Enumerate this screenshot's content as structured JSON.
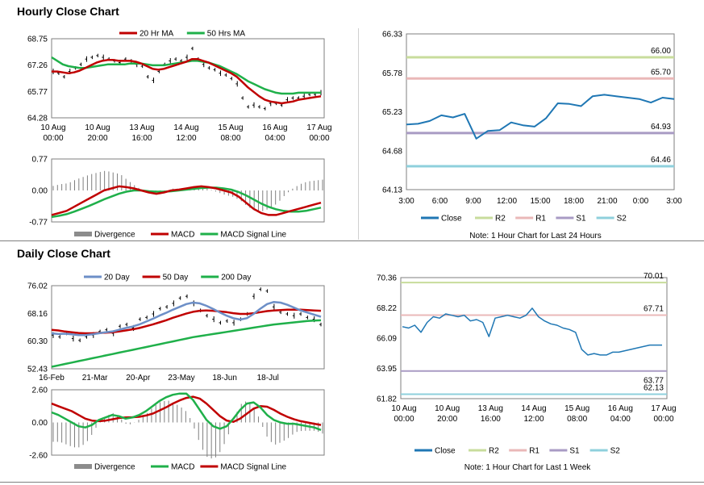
{
  "sections": {
    "hourly_title": "Hourly Close Chart",
    "daily_title": "Daily Close Chart"
  },
  "colors": {
    "red": "#c00000",
    "green": "#1fb04a",
    "blue": "#1f77b4",
    "steel": "#6d8fc7",
    "r2": "#c8dc9c",
    "r1": "#eab8b8",
    "s1": "#a99bc4",
    "s2": "#8fd0dc",
    "grey": "#8c8c8c"
  },
  "chart_data": [
    {
      "id": "hourly_price",
      "type": "line",
      "series": [
        {
          "name": "20 Hr MA",
          "color": "red"
        },
        {
          "name": "50 Hrs MA",
          "color": "green"
        }
      ],
      "x_ticks": [
        {
          "l1": "10 Aug",
          "l2": "00:00"
        },
        {
          "l1": "10 Aug",
          "l2": "20:00"
        },
        {
          "l1": "13 Aug",
          "l2": "16:00"
        },
        {
          "l1": "14 Aug",
          "l2": "12:00"
        },
        {
          "l1": "15 Aug",
          "l2": "08:00"
        },
        {
          "l1": "16 Aug",
          "l2": "04:00"
        },
        {
          "l1": "17 Aug",
          "l2": "00:00"
        }
      ],
      "y_ticks": [
        "68.75",
        "67.26",
        "65.77",
        "64.28"
      ],
      "ylim": [
        64.28,
        68.75
      ],
      "price_path": [
        66.9,
        66.8,
        66.6,
        66.9,
        67.1,
        67.3,
        67.6,
        67.7,
        67.8,
        67.7,
        67.6,
        67.5,
        67.4,
        67.6,
        67.5,
        67.3,
        67.2,
        66.6,
        66.4,
        66.9,
        67.3,
        67.5,
        67.6,
        67.5,
        67.7,
        68.2,
        67.6,
        67.3,
        67.1,
        67.0,
        66.8,
        66.7,
        66.5,
        66.2,
        65.4,
        64.9,
        65.0,
        64.9,
        64.8,
        65.1,
        65.1,
        65.0,
        65.3,
        65.4,
        65.4,
        65.5,
        65.6,
        65.6,
        65.7
      ],
      "ma20": [
        66.9,
        66.9,
        66.85,
        66.8,
        66.85,
        66.95,
        67.1,
        67.25,
        67.4,
        67.5,
        67.55,
        67.55,
        67.5,
        67.5,
        67.5,
        67.45,
        67.35,
        67.2,
        67.05,
        67.0,
        67.05,
        67.15,
        67.25,
        67.35,
        67.45,
        67.6,
        67.6,
        67.5,
        67.4,
        67.25,
        67.1,
        66.95,
        66.8,
        66.6,
        66.3,
        66.0,
        65.75,
        65.5,
        65.3,
        65.2,
        65.15,
        65.1,
        65.15,
        65.2,
        65.3,
        65.35,
        65.4,
        65.45,
        65.5
      ],
      "ma50": [
        67.7,
        67.5,
        67.3,
        67.2,
        67.15,
        67.1,
        67.1,
        67.15,
        67.2,
        67.25,
        67.3,
        67.3,
        67.3,
        67.3,
        67.35,
        67.35,
        67.35,
        67.3,
        67.25,
        67.25,
        67.25,
        67.3,
        67.35,
        67.4,
        67.45,
        67.5,
        67.5,
        67.45,
        67.4,
        67.3,
        67.2,
        67.05,
        66.9,
        66.75,
        66.55,
        66.35,
        66.2,
        66.05,
        65.9,
        65.8,
        65.7,
        65.65,
        65.65,
        65.65,
        65.7,
        65.7,
        65.7,
        65.7,
        65.7
      ]
    },
    {
      "id": "hourly_macd",
      "type": "line",
      "series": [
        {
          "name": "Divergence",
          "color": "grey"
        },
        {
          "name": "MACD",
          "color": "red"
        },
        {
          "name": "MACD Signal Line",
          "color": "green"
        }
      ],
      "y_ticks": [
        "0.77",
        "0.00",
        "-0.77"
      ],
      "ylim": [
        -0.77,
        0.77
      ],
      "macd": [
        -0.6,
        -0.55,
        -0.5,
        -0.4,
        -0.3,
        -0.2,
        -0.1,
        0.0,
        0.05,
        0.1,
        0.08,
        0.05,
        0.0,
        -0.05,
        -0.08,
        -0.05,
        0.0,
        0.02,
        0.05,
        0.08,
        0.1,
        0.08,
        0.05,
        0.0,
        -0.05,
        -0.15,
        -0.3,
        -0.45,
        -0.55,
        -0.6,
        -0.6,
        -0.55,
        -0.5,
        -0.45,
        -0.4,
        -0.35,
        -0.3
      ],
      "signal": [
        -0.65,
        -0.62,
        -0.58,
        -0.52,
        -0.45,
        -0.38,
        -0.3,
        -0.22,
        -0.15,
        -0.08,
        -0.03,
        0.0,
        0.0,
        -0.02,
        -0.03,
        -0.03,
        -0.02,
        0.0,
        0.02,
        0.04,
        0.06,
        0.07,
        0.07,
        0.05,
        0.02,
        -0.04,
        -0.12,
        -0.22,
        -0.32,
        -0.4,
        -0.46,
        -0.5,
        -0.52,
        -0.52,
        -0.5,
        -0.46,
        -0.42
      ]
    },
    {
      "id": "hourly_levels",
      "type": "line",
      "note": "Note: 1 Hour Chart for Last 24 Hours",
      "y_ticks": [
        "66.33",
        "65.78",
        "65.23",
        "64.68",
        "64.13"
      ],
      "ylim": [
        64.13,
        66.33
      ],
      "x_ticks": [
        "3:00",
        "6:00",
        "9:00",
        "12:00",
        "15:00",
        "18:00",
        "21:00",
        "0:00",
        "3:00"
      ],
      "levels": [
        {
          "name": "R2",
          "value": 66.0,
          "label": "66.00",
          "color": "r2"
        },
        {
          "name": "R1",
          "value": 65.7,
          "label": "65.70",
          "color": "r1"
        },
        {
          "name": "S1",
          "value": 64.93,
          "label": "64.93",
          "color": "s1"
        },
        {
          "name": "S2",
          "value": 64.46,
          "label": "64.46",
          "color": "s2"
        }
      ],
      "close": [
        65.05,
        65.06,
        65.1,
        65.18,
        65.15,
        65.2,
        64.85,
        64.96,
        64.97,
        65.08,
        65.04,
        65.02,
        65.14,
        65.35,
        65.34,
        65.31,
        65.45,
        65.47,
        65.45,
        65.43,
        65.41,
        65.36,
        65.43,
        65.41
      ]
    },
    {
      "id": "daily_price",
      "type": "line",
      "series": [
        {
          "name": "20 Day",
          "color": "steel"
        },
        {
          "name": "50 Day",
          "color": "red"
        },
        {
          "name": "200 Day",
          "color": "green"
        }
      ],
      "x_ticks": [
        "16-Feb",
        "21-Mar",
        "20-Apr",
        "23-May",
        "18-Jun",
        "18-Jul"
      ],
      "y_ticks": [
        "76.02",
        "68.16",
        "60.30",
        "52.43"
      ],
      "ylim": [
        52.43,
        76.02
      ],
      "price_path": [
        62.0,
        61.5,
        62.5,
        61.0,
        60.5,
        61.5,
        62.0,
        63.0,
        63.5,
        62.5,
        64.5,
        65.0,
        64.0,
        66.5,
        67.0,
        68.0,
        69.5,
        70.0,
        71.0,
        72.5,
        73.0,
        71.0,
        69.0,
        67.5,
        66.5,
        65.5,
        66.0,
        65.5,
        66.5,
        68.0,
        73.0,
        75.0,
        74.5,
        70.0,
        68.5,
        68.0,
        67.5,
        68.0,
        67.0,
        66.5,
        65.0
      ],
      "ma20": [
        62.5,
        62.3,
        62.4,
        62.2,
        62.0,
        62.0,
        62.2,
        62.5,
        62.8,
        63.0,
        63.5,
        64.0,
        64.4,
        65.0,
        65.8,
        66.6,
        67.5,
        68.3,
        69.2,
        70.0,
        70.8,
        71.2,
        71.0,
        70.3,
        69.4,
        68.4,
        67.5,
        66.8,
        66.4,
        66.8,
        68.0,
        69.5,
        70.8,
        71.4,
        71.2,
        70.6,
        69.8,
        69.0,
        68.4,
        67.8,
        67.2
      ],
      "ma50": [
        63.5,
        63.3,
        63.0,
        62.8,
        62.6,
        62.5,
        62.5,
        62.6,
        62.7,
        62.8,
        63.0,
        63.3,
        63.6,
        64.0,
        64.5,
        65.0,
        65.6,
        66.2,
        66.9,
        67.5,
        68.1,
        68.6,
        68.9,
        69.0,
        68.9,
        68.7,
        68.5,
        68.2,
        68.0,
        68.0,
        68.2,
        68.5,
        68.8,
        69.0,
        69.1,
        69.2,
        69.2,
        69.2,
        69.1,
        69.0,
        68.9
      ],
      "ma200": [
        53.0,
        53.4,
        53.8,
        54.2,
        54.6,
        55.0,
        55.4,
        55.8,
        56.2,
        56.6,
        57.0,
        57.4,
        57.8,
        58.2,
        58.6,
        59.0,
        59.4,
        59.8,
        60.2,
        60.6,
        61.0,
        61.4,
        61.7,
        62.0,
        62.3,
        62.6,
        62.9,
        63.2,
        63.5,
        63.8,
        64.1,
        64.4,
        64.7,
        65.0,
        65.2,
        65.4,
        65.6,
        65.8,
        66.0,
        66.1,
        66.2
      ]
    },
    {
      "id": "daily_macd",
      "type": "line",
      "series": [
        {
          "name": "Divergence",
          "color": "grey"
        },
        {
          "name": "MACD",
          "color": "green"
        },
        {
          "name": "MACD Signal Line",
          "color": "red"
        }
      ],
      "y_ticks": [
        "2.60",
        "0.00",
        "-2.60"
      ],
      "ylim": [
        -2.6,
        2.6
      ],
      "macd": [
        0.8,
        0.6,
        0.3,
        0.0,
        -0.3,
        -0.4,
        -0.2,
        0.2,
        0.4,
        0.6,
        0.5,
        0.3,
        0.4,
        0.6,
        0.9,
        1.3,
        1.7,
        2.0,
        2.2,
        2.3,
        2.3,
        1.8,
        1.0,
        0.2,
        -0.3,
        -0.5,
        -0.3,
        0.3,
        1.0,
        1.5,
        1.6,
        1.2,
        0.6,
        0.2,
        0.0,
        -0.1,
        -0.1,
        -0.2,
        -0.3,
        -0.4,
        -0.6
      ],
      "signal": [
        1.5,
        1.3,
        1.1,
        0.9,
        0.6,
        0.3,
        0.15,
        0.1,
        0.15,
        0.25,
        0.35,
        0.4,
        0.42,
        0.45,
        0.55,
        0.7,
        0.95,
        1.2,
        1.5,
        1.75,
        1.95,
        2.05,
        1.9,
        1.5,
        1.0,
        0.5,
        0.15,
        0.05,
        0.3,
        0.7,
        1.1,
        1.3,
        1.25,
        1.0,
        0.7,
        0.45,
        0.25,
        0.1,
        0.0,
        -0.1,
        -0.2
      ]
    },
    {
      "id": "daily_levels",
      "type": "line",
      "note": "Note: 1 Hour Chart for Last 1 Week",
      "y_ticks": [
        "70.36",
        "68.22",
        "66.09",
        "63.95",
        "61.82"
      ],
      "ylim": [
        61.82,
        70.36
      ],
      "x_ticks": [
        {
          "l1": "10 Aug",
          "l2": "00:00"
        },
        {
          "l1": "10 Aug",
          "l2": "20:00"
        },
        {
          "l1": "13 Aug",
          "l2": "16:00"
        },
        {
          "l1": "14 Aug",
          "l2": "12:00"
        },
        {
          "l1": "15 Aug",
          "l2": "08:00"
        },
        {
          "l1": "16 Aug",
          "l2": "04:00"
        },
        {
          "l1": "17 Aug",
          "l2": "00:00"
        }
      ],
      "levels": [
        {
          "name": "R2",
          "value": 70.01,
          "label": "70.01",
          "color": "r2"
        },
        {
          "name": "R1",
          "value": 67.71,
          "label": "67.71",
          "color": "r1"
        },
        {
          "name": "S1",
          "value": 63.77,
          "label": "63.77",
          "color": "s1"
        },
        {
          "name": "S2",
          "value": 62.13,
          "label": "62.13",
          "color": "s2"
        }
      ],
      "close": [
        66.9,
        66.8,
        67.0,
        66.5,
        67.2,
        67.6,
        67.5,
        67.8,
        67.7,
        67.6,
        67.7,
        67.3,
        67.4,
        67.2,
        66.2,
        67.5,
        67.6,
        67.7,
        67.6,
        67.5,
        67.7,
        68.2,
        67.6,
        67.3,
        67.1,
        67.0,
        66.8,
        66.7,
        66.5,
        65.3,
        64.9,
        65.0,
        64.9,
        64.9,
        65.1,
        65.1,
        65.2,
        65.3,
        65.4,
        65.5,
        65.6,
        65.6,
        65.6
      ]
    }
  ]
}
